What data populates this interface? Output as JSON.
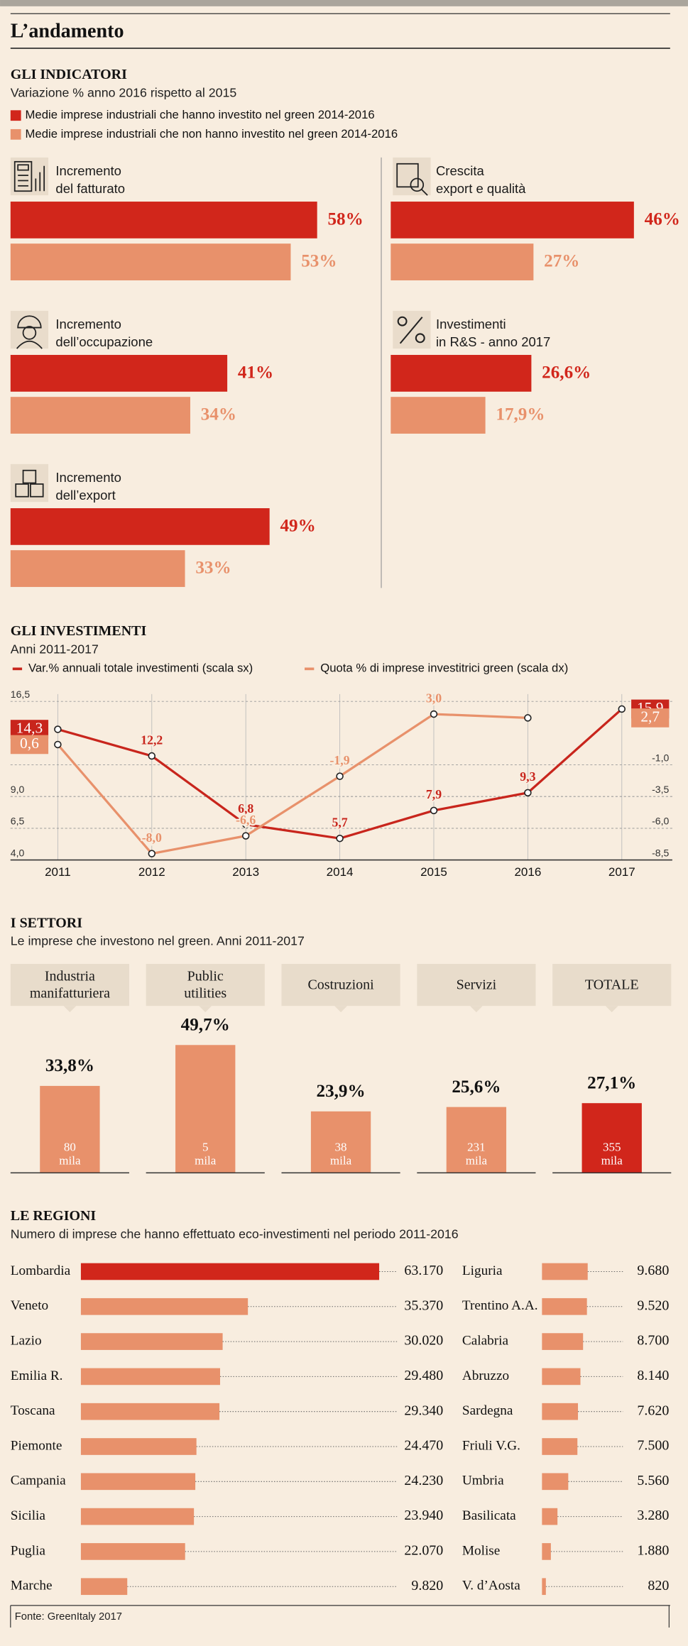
{
  "title": "L’andamento",
  "source": "Fonte: GreenItaly 2017",
  "chart_data": [
    {
      "type": "bar",
      "title": "GLI INDICATORI",
      "subtitle": "Variazione % anno 2016 rispetto al 2015",
      "categories": [
        "Incremento\ndel fatturato",
        "Incremento\ndell’occupazione",
        "Incremento\ndell’export",
        "Crescita\nexport e qualità",
        "Investimenti\nin R&S - anno 2017"
      ],
      "series": [
        {
          "name": "Medie imprese industriali che hanno investito nel green 2014-2016",
          "color": "#d1261b",
          "values": [
            58,
            41,
            49,
            46,
            26.6
          ],
          "value_labels": [
            "58%",
            "41%",
            "49%",
            "46%",
            "26,6%"
          ]
        },
        {
          "name": "Medie imprese industriali che non hanno investito nel green 2014-2016",
          "color": "#e8916b",
          "values": [
            53,
            34,
            33,
            27,
            17.9
          ],
          "value_labels": [
            "53%",
            "34%",
            "33%",
            "27%",
            "17,9%"
          ]
        }
      ],
      "xlim": [
        0,
        60
      ]
    },
    {
      "type": "line",
      "title": "GLI INVESTIMENTI",
      "subtitle": "Anni 2011-2017",
      "categories": [
        "2011",
        "2012",
        "2013",
        "2014",
        "2015",
        "2016",
        "2017"
      ],
      "series": [
        {
          "name": "Var.% annuali totale investimenti (scala sx)",
          "color": "#c8251c",
          "values": [
            14.3,
            12.2,
            6.8,
            5.7,
            7.9,
            9.3,
            15.9
          ],
          "value_labels": [
            "14,3",
            "12,2",
            "6,8",
            "5,7",
            "7,9",
            "9,3",
            "15,9"
          ]
        },
        {
          "name": "Quota % di imprese investitrici green (scala dx)",
          "color": "#e8916b",
          "axis": "y2",
          "values": [
            0.6,
            -8.0,
            -6.6,
            -1.9,
            3.0,
            2.7,
            null
          ],
          "value_labels": [
            "0,6",
            "-8,0",
            "-6,6",
            "-1,9",
            "3,0",
            "2,7",
            null
          ]
        }
      ],
      "ylim": [
        4.0,
        16.5
      ],
      "yticks": [
        {
          "value": 4.0,
          "label": "4,0"
        },
        {
          "value": 6.5,
          "label": "6,5"
        },
        {
          "value": 9.0,
          "label": "9,0"
        },
        {
          "value": 16.5,
          "label": "16,5"
        }
      ],
      "y2lim": [
        -8.5,
        4.0
      ],
      "y2ticks": [
        {
          "value": -8.5,
          "label": "-8,5"
        },
        {
          "value": -6.0,
          "label": "-6,0"
        },
        {
          "value": -3.5,
          "label": "-3,5"
        },
        {
          "value": -1.0,
          "label": "-1,0"
        }
      ],
      "grid": true
    },
    {
      "type": "bar",
      "title": "I SETTORI",
      "subtitle": "Le imprese che investono nel green. Anni 2011-2017",
      "categories": [
        "Industria\nmanifatturiera",
        "Public\nutilities",
        "Costruzioni",
        "Servizi",
        "TOTALE"
      ],
      "values": [
        33.8,
        49.7,
        23.9,
        25.6,
        27.1
      ],
      "value_labels": [
        "33,8%",
        "49,7%",
        "23,9%",
        "25,6%",
        "27,1%"
      ],
      "colors": [
        "#e8916b",
        "#e8916b",
        "#e8916b",
        "#e8916b",
        "#d1261b"
      ],
      "companies": [
        "80\nmila",
        "5\nmila",
        "38\nmila",
        "231\nmila",
        "355\nmila"
      ],
      "ylim": [
        0,
        50
      ]
    },
    {
      "type": "hbar",
      "title": "LE REGIONI",
      "subtitle": "Numero di imprese che hanno effettuato eco-investimenti nel periodo 2011-2016",
      "categories": [
        "Lombardia",
        "Veneto",
        "Lazio",
        "Emilia R.",
        "Toscana",
        "Piemonte",
        "Campania",
        "Sicilia",
        "Puglia",
        "Marche",
        "Liguria",
        "Trentino A.A.",
        "Calabria",
        "Abruzzo",
        "Sardegna",
        "Friuli V.G.",
        "Umbria",
        "Basilicata",
        "Molise",
        "V. d’Aosta"
      ],
      "values": [
        63170,
        35370,
        30020,
        29480,
        29340,
        24470,
        24230,
        23940,
        22070,
        9820,
        9680,
        9520,
        8700,
        8140,
        7620,
        7500,
        5560,
        3280,
        1880,
        820
      ],
      "value_labels": [
        "63.170",
        "35.370",
        "30.020",
        "29.480",
        "29.340",
        "24.470",
        "24.230",
        "23.940",
        "22.070",
        "9.820",
        "9.680",
        "9.520",
        "8.700",
        "8.140",
        "7.620",
        "7.500",
        "5.560",
        "3.280",
        "1.880",
        "820"
      ],
      "colors": [
        "#d1261b",
        "#e8916b",
        "#e8916b",
        "#e8916b",
        "#e8916b",
        "#e8916b",
        "#e8916b",
        "#e8916b",
        "#e8916b",
        "#e8916b",
        "#e8916b",
        "#e8916b",
        "#e8916b",
        "#e8916b",
        "#e8916b",
        "#e8916b",
        "#e8916b",
        "#e8916b",
        "#e8916b",
        "#e8916b"
      ],
      "xlim": [
        0,
        70000
      ]
    }
  ]
}
